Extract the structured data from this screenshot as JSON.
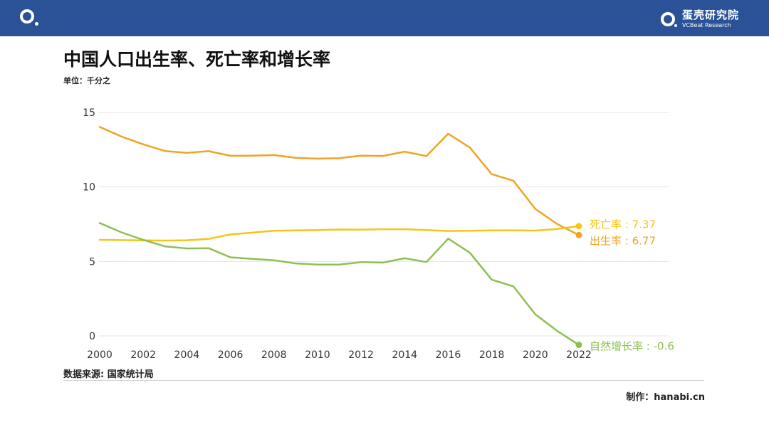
{
  "header": {
    "brand_cn": "蛋壳研究院",
    "brand_en": "VCBeat Research"
  },
  "chart_data": {
    "type": "line",
    "title": "中国人口出生率、死亡率和增长率",
    "unit": "单位：千分之",
    "x": [
      2000,
      2001,
      2002,
      2003,
      2004,
      2005,
      2006,
      2007,
      2008,
      2009,
      2010,
      2011,
      2012,
      2013,
      2014,
      2015,
      2016,
      2017,
      2018,
      2019,
      2020,
      2021,
      2022
    ],
    "xticks": [
      2000,
      2002,
      2004,
      2006,
      2008,
      2010,
      2012,
      2014,
      2016,
      2018,
      2020,
      2022
    ],
    "yticks": [
      0,
      5,
      10,
      15
    ],
    "ylim": [
      -0.8,
      15
    ],
    "grid": "horizontal",
    "series": [
      {
        "name": "出生率",
        "color": "#f0a422",
        "values": [
          14.03,
          13.38,
          12.86,
          12.41,
          12.29,
          12.4,
          12.09,
          12.1,
          12.14,
          11.95,
          11.9,
          11.93,
          12.1,
          12.08,
          12.37,
          12.07,
          13.57,
          12.64,
          10.86,
          10.41,
          8.52,
          7.52,
          6.77
        ],
        "end_label": "出生率 : 6.77"
      },
      {
        "name": "死亡率",
        "color": "#f5c518",
        "values": [
          6.45,
          6.43,
          6.41,
          6.4,
          6.42,
          6.51,
          6.81,
          6.93,
          7.06,
          7.08,
          7.11,
          7.14,
          7.13,
          7.16,
          7.16,
          7.11,
          7.04,
          7.06,
          7.08,
          7.09,
          7.07,
          7.18,
          7.37
        ],
        "end_label": "死亡率 : 7.37"
      },
      {
        "name": "自然增长率",
        "color": "#8cc152",
        "values": [
          7.58,
          6.95,
          6.45,
          6.01,
          5.87,
          5.89,
          5.28,
          5.17,
          5.08,
          4.87,
          4.79,
          4.79,
          4.95,
          4.92,
          5.21,
          4.96,
          6.53,
          5.58,
          3.78,
          3.32,
          1.45,
          0.34,
          -0.6
        ],
        "end_label": "自然增长率 : -0.6"
      }
    ]
  },
  "footer": {
    "source": "数据来源: 国家统计局",
    "credit": "制作：hanabi.cn"
  }
}
